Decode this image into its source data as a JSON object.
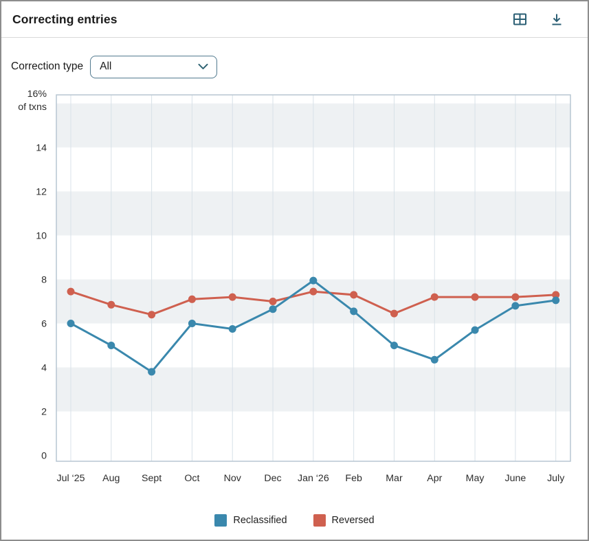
{
  "header": {
    "title": "Correcting entries",
    "icons": [
      "table-icon",
      "download-icon"
    ],
    "icon_color": "#2b5f74"
  },
  "filter": {
    "label": "Correction type",
    "value": "All"
  },
  "chart_data": {
    "type": "line",
    "title": "Correcting entries",
    "x": [
      "Jul ‘25",
      "Aug",
      "Sept",
      "Oct",
      "Nov",
      "Dec",
      "Jan ‘26",
      "Feb",
      "Mar",
      "Apr",
      "May",
      "June",
      "July"
    ],
    "series": [
      {
        "name": "Reclassified",
        "color": "#3a88ad",
        "values": [
          6.0,
          5.0,
          3.8,
          6.0,
          5.75,
          6.65,
          7.95,
          6.55,
          5.0,
          4.35,
          5.7,
          6.8,
          7.05
        ]
      },
      {
        "name": "Reversed",
        "color": "#cf604f",
        "values": [
          7.45,
          6.85,
          6.4,
          7.1,
          7.2,
          7.0,
          7.45,
          7.3,
          6.45,
          7.2,
          7.2,
          7.2,
          7.3
        ]
      }
    ],
    "ylabel_lines": [
      "16%",
      "of txns"
    ],
    "yticks": [
      14,
      12,
      10,
      8,
      6,
      4,
      2,
      0
    ],
    "ylim": [
      0,
      16
    ],
    "grid": "vertical-only",
    "legend_position": "bottom",
    "style": {
      "band_color": "#eef1f3",
      "grid_color": "#d8e1e8",
      "border_color": "#b7c6d2",
      "tick_color": "#2d2d2d"
    }
  }
}
